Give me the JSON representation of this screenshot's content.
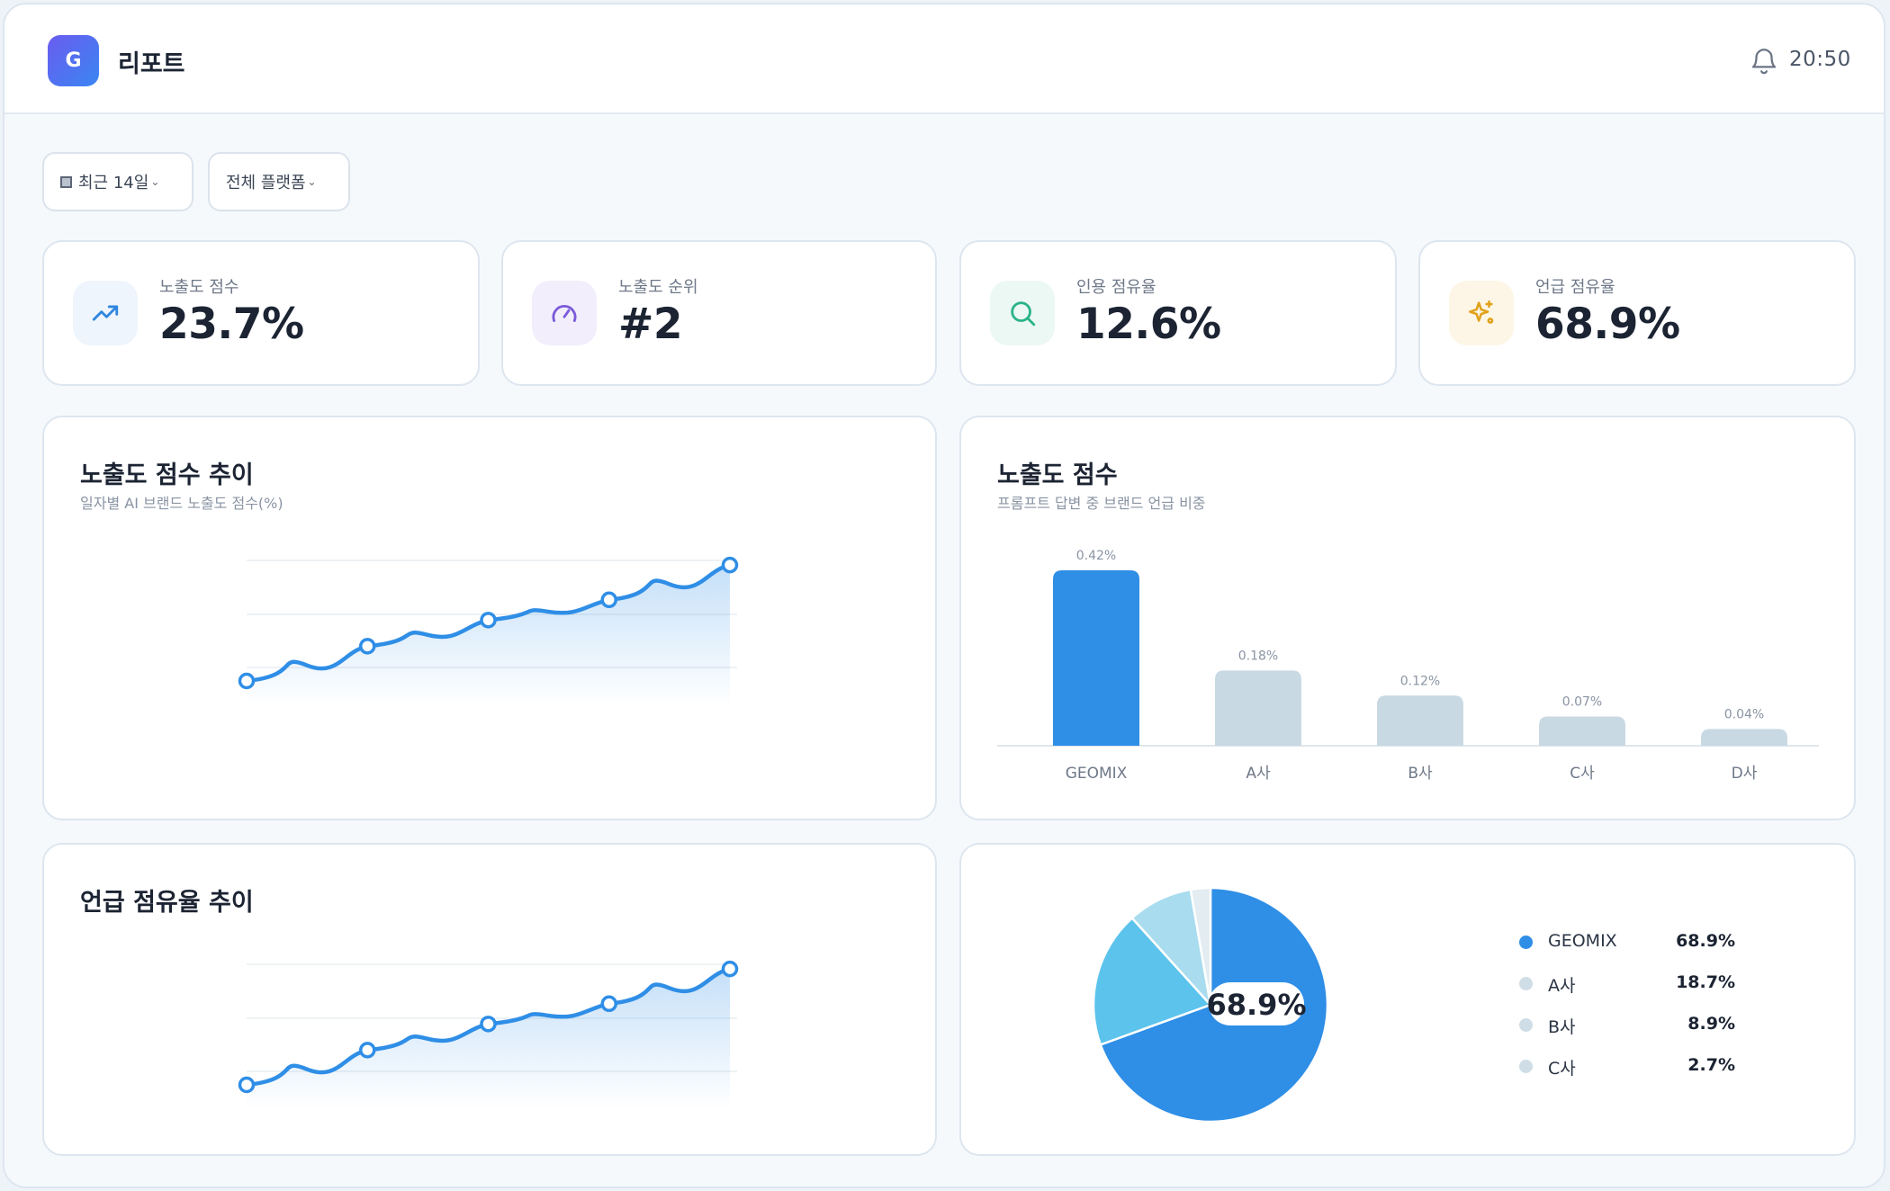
{
  "header": {
    "logo_letter": "G",
    "title": "리포트",
    "time": "20:50",
    "notification_icon": "bell-icon"
  },
  "filters": {
    "period": "최근 14일",
    "platform": "전체 플랫폼"
  },
  "kpis": [
    {
      "label": "노출도 점수",
      "value": "23.7%",
      "icon": "trending-up-icon",
      "color": "#2f86e0",
      "bg": "#eef5fd"
    },
    {
      "label": "노출도 순위",
      "value": "#2",
      "icon": "gauge-icon",
      "color": "#7a5ad8",
      "bg": "#f2eefc"
    },
    {
      "label": "인용 점유율",
      "value": "12.6%",
      "icon": "search-icon",
      "color": "#2bb38a",
      "bg": "#ecf8f3"
    },
    {
      "label": "언급 점유율",
      "value": "68.9%",
      "icon": "sparkle-icon",
      "color": "#e0a21c",
      "bg": "#fdf6e6"
    }
  ],
  "exposure_trend": {
    "title": "노출도 점수 추이",
    "subtitle": "일자별 AI 브랜드 노출도 점수(%)"
  },
  "exposure_bar": {
    "title": "노출도 점수",
    "subtitle": "프롬프트 답변 중 브랜드 언급 비중"
  },
  "mention_trend": {
    "title": "언급 점유율 추이"
  },
  "share_pie": {
    "center_label": "68.9%"
  },
  "colors": {
    "primary": "#2f8ee6",
    "muted_bar": "#c9d9e4",
    "pie": [
      "#2f8ee6",
      "#5bc3ec",
      "#a8dcee",
      "#e2ecf1"
    ]
  },
  "chart_data": [
    {
      "type": "line",
      "name": "노출도 점수 추이",
      "x": [
        1,
        2,
        3,
        4,
        5
      ],
      "y": [
        0.0,
        2.4,
        4.2,
        5.6,
        8.0
      ],
      "ylim": [
        0,
        9
      ],
      "grid": true,
      "area_fill": true
    },
    {
      "type": "bar",
      "name": "노출도 점수",
      "categories": [
        "GEOMIX",
        "A사",
        "B사",
        "C사",
        "D사"
      ],
      "values": [
        0.42,
        0.18,
        0.12,
        0.07,
        0.04
      ],
      "value_labels": [
        "0.42%",
        "0.18%",
        "0.12%",
        "0.07%",
        "0.04%"
      ],
      "ylim": [
        0,
        0.42
      ]
    },
    {
      "type": "line",
      "name": "언급 점유율 추이",
      "x": [
        1,
        2,
        3,
        4,
        5
      ],
      "y": [
        0.0,
        2.4,
        4.2,
        5.6,
        8.0
      ],
      "ylim": [
        0,
        9
      ],
      "grid": true,
      "area_fill": true
    },
    {
      "type": "pie",
      "labels": [
        "GEOMIX",
        "A사",
        "B사",
        "C사"
      ],
      "values": [
        68.9,
        18.7,
        8.9,
        2.7
      ],
      "value_labels": [
        "68.9%",
        "18.7%",
        "8.9%",
        "2.7%"
      ]
    }
  ]
}
